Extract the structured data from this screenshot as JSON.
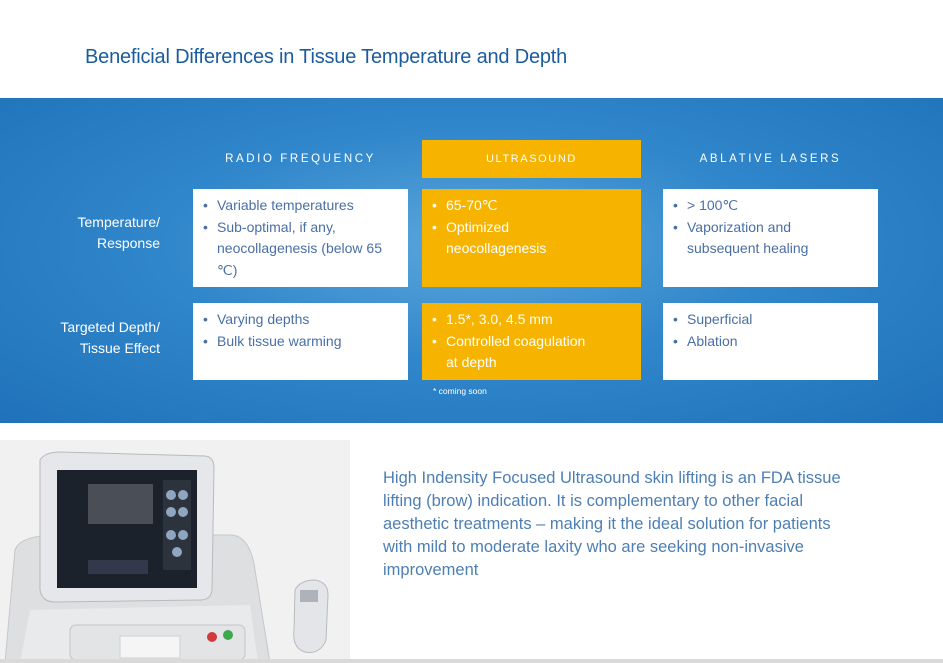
{
  "title": "Beneficial Differences in Tissue Temperature and Depth",
  "columns": {
    "rf": "RADIO FREQUENCY",
    "us": "ULTRASOUND",
    "al": "ABLATIVE LASERS"
  },
  "rows": [
    {
      "label_line1": "Temperature/",
      "label_line2": "Response",
      "rf": [
        "Variable temperatures",
        "Sub-optimal, if any, neocollagenesis (below 65 ℃)"
      ],
      "us": [
        "65-70℃",
        "Optimized neocollagenesis"
      ],
      "al": [
        "> 100℃",
        "Vaporization and subsequent healing"
      ]
    },
    {
      "label_line1": "Targeted Depth/",
      "label_line2": "Tissue Effect",
      "rf": [
        "Varying depths",
        "Bulk tissue warming"
      ],
      "us": [
        "1.5*, 3.0, 4.5 mm",
        "Controlled coagulation at depth"
      ],
      "al": [
        "Superficial",
        "Ablation"
      ]
    }
  ],
  "footnote": "* coming soon",
  "description": "High Indensity Focused Ultrasound skin lifting is an FDA tissue lifting (brow) indication. It is complementary to other facial aesthetic treatments – making it the ideal solution for patients with mild to moderate laxity who are seeking non-invasive improvement",
  "colors": {
    "title": "#1b5c9e",
    "band": "#2a7dc3",
    "highlight": "#f6b400",
    "text": "#4d7fb3"
  }
}
